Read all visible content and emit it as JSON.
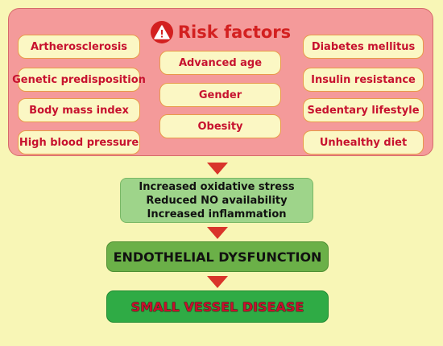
{
  "risk_panel": {
    "title": "Risk factors",
    "icon": "warning-icon",
    "left_column": [
      "Artherosclerosis",
      "Genetic predisposition",
      "Body mass index",
      "High blood pressure"
    ],
    "middle_column": [
      "Advanced age",
      "Gender",
      "Obesity"
    ],
    "right_column": [
      "Diabetes mellitus",
      "Insulin resistance",
      "Sedentary lifestyle",
      "Unhealthy diet"
    ]
  },
  "mechanisms": [
    "Increased oxidative stress",
    "Reduced NO availability",
    "Increased inflammation"
  ],
  "endothelial": "ENDOTHELIAL DYSFUNCTION",
  "outcome": "SMALL VESSEL DISEASE",
  "colors": {
    "panel": "#f49a9a",
    "title": "#d32020",
    "pill_text": "#c7122f",
    "arrow": "#d9342b",
    "mechanism_box": "#9ed48a",
    "endothelial_box": "#6bb048",
    "outcome_box": "#2fab45"
  }
}
